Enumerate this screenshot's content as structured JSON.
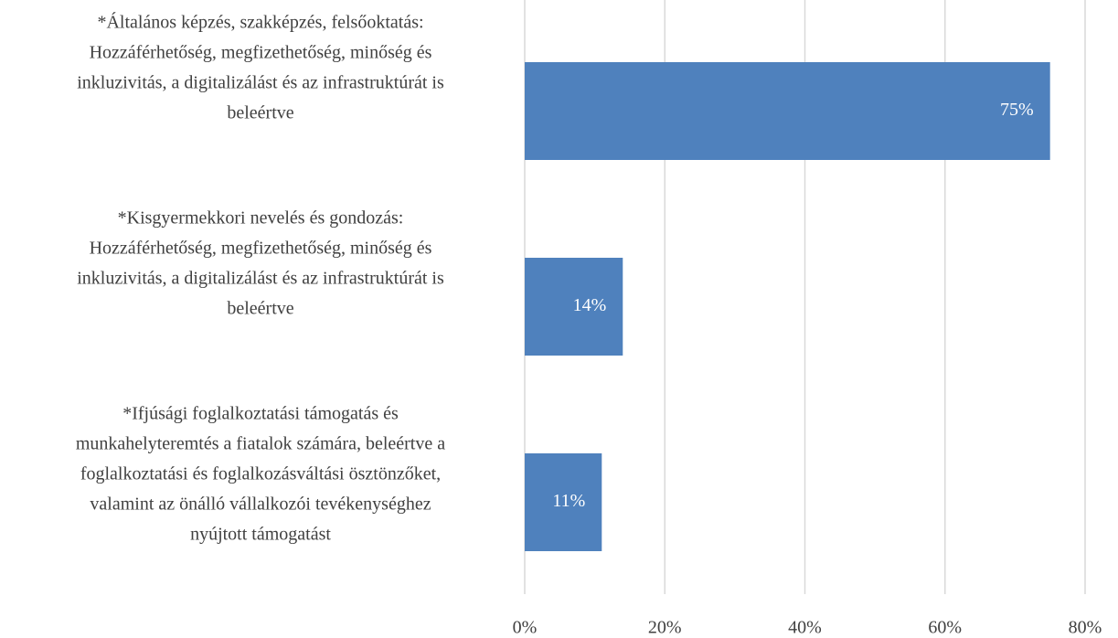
{
  "chart_data": {
    "type": "hbar",
    "categories": [
      [
        "*Általános képzés, szakképzés, felsőoktatás:",
        "Hozzáférhetőség, megfizethetőség, minőség és",
        "inkluzivitás, a digitalizálást és az infrastruktúrát is",
        "beleértve"
      ],
      [
        "*Kisgyermekkori nevelés és gondozás:",
        "Hozzáférhetőség, megfizethetőség, minőség és",
        "inkluzivitás, a digitalizálást és az infrastruktúrát is",
        "beleértve"
      ],
      [
        "*Ifjúsági foglalkoztatási támogatás és",
        "munkahelyteremtés a fiatalok számára, beleértve a",
        "foglalkoztatási és foglalkozásváltási ösztönzőket,",
        "valamint az önálló vállalkozói tevékenységhez",
        "nyújtott támogatást"
      ]
    ],
    "values": [
      75,
      14,
      11
    ],
    "value_labels": [
      "75%",
      "14%",
      "11%"
    ],
    "color": "#4f81bd",
    "xlim": [
      0,
      80
    ],
    "xticks": [
      {
        "value": 0,
        "label": "0%"
      },
      {
        "value": 20,
        "label": "20%"
      },
      {
        "value": 40,
        "label": "40%"
      },
      {
        "value": 60,
        "label": "60%"
      },
      {
        "value": 80,
        "label": "80%"
      }
    ],
    "grid": true
  }
}
